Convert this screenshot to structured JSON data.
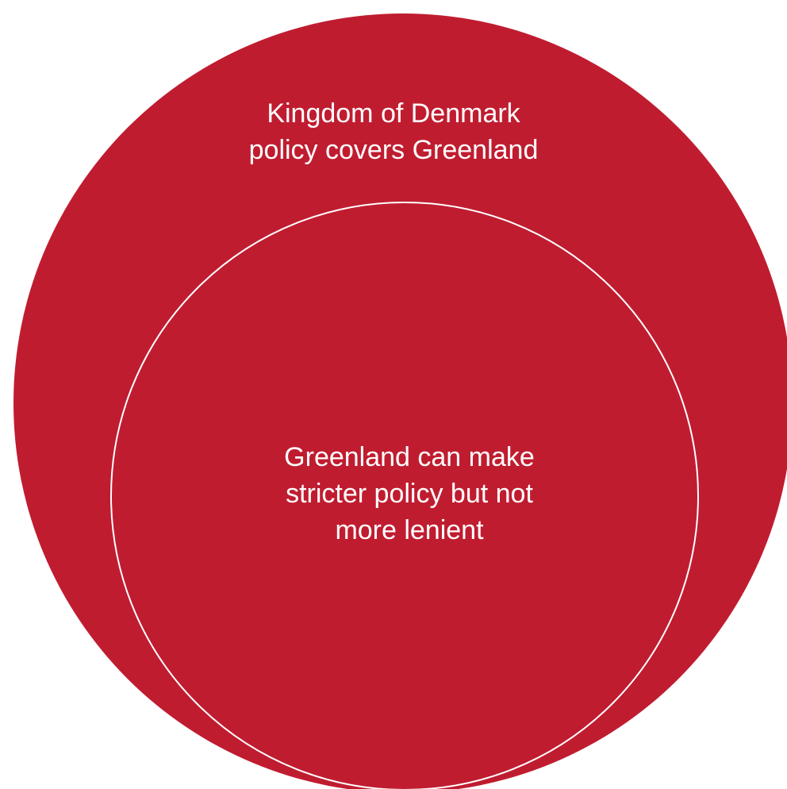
{
  "diagram": {
    "outer_circle": {
      "label_line1": "Kingdom of Denmark",
      "label_line2": "policy covers Greenland",
      "fill_color": "#C01C30"
    },
    "inner_circle": {
      "label_line1": "Greenland can make",
      "label_line2": "stricter policy but not",
      "label_line3": "more lenient",
      "fill_color": "#C01C30",
      "stroke_color": "#FFFFFF"
    }
  }
}
